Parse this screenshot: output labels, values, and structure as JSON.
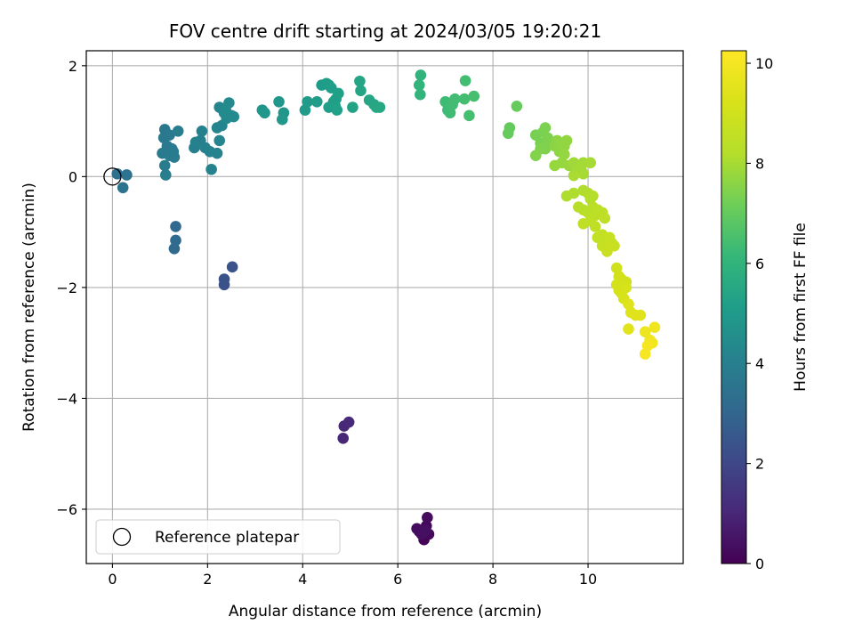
{
  "chart_data": {
    "type": "scatter",
    "title": "FOV centre drift starting at 2024/03/05 19:20:21",
    "xlabel": "Angular distance from reference (arcmin)",
    "ylabel": "Rotation from reference (arcmin)",
    "xlim": [
      -0.55,
      12.0
    ],
    "ylim": [
      -6.98,
      2.27
    ],
    "xticks": [
      0,
      2,
      4,
      6,
      8,
      10
    ],
    "yticks": [
      -6,
      -4,
      -2,
      0,
      2
    ],
    "grid": true,
    "legend": {
      "placement": "lower-left",
      "entries": [
        "Reference platepar"
      ]
    },
    "reference_point": {
      "x": 0,
      "y": 0
    },
    "colorbar": {
      "label": "Hours from first FF file",
      "range": [
        0,
        10.25
      ],
      "ticks": [
        0,
        2,
        4,
        6,
        8,
        10
      ],
      "colormap": "viridis"
    },
    "points": [
      {
        "x": 6.55,
        "y": -6.55,
        "t": 0.05
      },
      {
        "x": 6.45,
        "y": -6.4,
        "t": 0.1
      },
      {
        "x": 6.6,
        "y": -6.3,
        "t": 0.15
      },
      {
        "x": 6.65,
        "y": -6.45,
        "t": 0.2
      },
      {
        "x": 6.62,
        "y": -6.15,
        "t": 0.25
      },
      {
        "x": 6.4,
        "y": -6.35,
        "t": 0.3
      },
      {
        "x": 6.5,
        "y": -6.45,
        "t": 0.35
      },
      {
        "x": 6.58,
        "y": -6.38,
        "t": 0.4
      },
      {
        "x": 4.85,
        "y": -4.72,
        "t": 1.0
      },
      {
        "x": 4.87,
        "y": -4.5,
        "t": 1.05
      },
      {
        "x": 4.97,
        "y": -4.43,
        "t": 1.1
      },
      {
        "x": 2.35,
        "y": -1.95,
        "t": 2.3
      },
      {
        "x": 2.35,
        "y": -1.85,
        "t": 2.35
      },
      {
        "x": 2.52,
        "y": -1.63,
        "t": 2.4
      },
      {
        "x": 1.33,
        "y": -0.9,
        "t": 3.1
      },
      {
        "x": 1.33,
        "y": -1.15,
        "t": 3.15
      },
      {
        "x": 1.3,
        "y": -1.3,
        "t": 3.2
      },
      {
        "x": 0.1,
        "y": 0.05,
        "t": 3.4
      },
      {
        "x": 0.3,
        "y": 0.03,
        "t": 3.45
      },
      {
        "x": 0.22,
        "y": -0.2,
        "t": 3.5
      },
      {
        "x": 1.1,
        "y": 0.85,
        "t": 3.7
      },
      {
        "x": 1.08,
        "y": 0.7,
        "t": 3.72
      },
      {
        "x": 1.2,
        "y": 0.75,
        "t": 3.74
      },
      {
        "x": 1.15,
        "y": 0.55,
        "t": 3.76
      },
      {
        "x": 1.05,
        "y": 0.42,
        "t": 3.78
      },
      {
        "x": 1.25,
        "y": 0.5,
        "t": 3.8
      },
      {
        "x": 1.2,
        "y": 0.38,
        "t": 3.82
      },
      {
        "x": 1.3,
        "y": 0.35,
        "t": 3.84
      },
      {
        "x": 1.28,
        "y": 0.45,
        "t": 3.86
      },
      {
        "x": 1.1,
        "y": 0.2,
        "t": 3.88
      },
      {
        "x": 1.12,
        "y": 0.03,
        "t": 3.9
      },
      {
        "x": 1.38,
        "y": 0.82,
        "t": 3.92
      },
      {
        "x": 1.72,
        "y": 0.52,
        "t": 4.0
      },
      {
        "x": 1.75,
        "y": 0.62,
        "t": 4.02
      },
      {
        "x": 1.85,
        "y": 0.65,
        "t": 4.04
      },
      {
        "x": 1.88,
        "y": 0.82,
        "t": 4.06
      },
      {
        "x": 1.95,
        "y": 0.52,
        "t": 4.08
      },
      {
        "x": 2.05,
        "y": 0.45,
        "t": 4.1
      },
      {
        "x": 2.08,
        "y": 0.13,
        "t": 4.12
      },
      {
        "x": 2.2,
        "y": 0.42,
        "t": 4.14
      },
      {
        "x": 2.25,
        "y": 0.65,
        "t": 4.16
      },
      {
        "x": 2.2,
        "y": 0.88,
        "t": 4.18
      },
      {
        "x": 2.3,
        "y": 0.92,
        "t": 4.2
      },
      {
        "x": 2.25,
        "y": 1.25,
        "t": 4.3
      },
      {
        "x": 2.35,
        "y": 1.15,
        "t": 4.32
      },
      {
        "x": 2.4,
        "y": 1.05,
        "t": 4.34
      },
      {
        "x": 2.5,
        "y": 1.1,
        "t": 4.36
      },
      {
        "x": 2.55,
        "y": 1.08,
        "t": 4.38
      },
      {
        "x": 2.45,
        "y": 1.33,
        "t": 4.4
      },
      {
        "x": 2.38,
        "y": 1.2,
        "t": 4.42
      },
      {
        "x": 3.15,
        "y": 1.2,
        "t": 4.8
      },
      {
        "x": 3.2,
        "y": 1.15,
        "t": 4.82
      },
      {
        "x": 3.5,
        "y": 1.35,
        "t": 4.85
      },
      {
        "x": 3.6,
        "y": 1.15,
        "t": 4.88
      },
      {
        "x": 3.57,
        "y": 1.03,
        "t": 4.9
      },
      {
        "x": 4.05,
        "y": 1.2,
        "t": 5.0
      },
      {
        "x": 4.1,
        "y": 1.35,
        "t": 5.02
      },
      {
        "x": 4.3,
        "y": 1.35,
        "t": 5.04
      },
      {
        "x": 4.4,
        "y": 1.65,
        "t": 5.06
      },
      {
        "x": 4.5,
        "y": 1.68,
        "t": 5.08
      },
      {
        "x": 4.55,
        "y": 1.65,
        "t": 5.1
      },
      {
        "x": 4.6,
        "y": 1.6,
        "t": 5.12
      },
      {
        "x": 4.55,
        "y": 1.25,
        "t": 5.14
      },
      {
        "x": 4.65,
        "y": 1.35,
        "t": 5.16
      },
      {
        "x": 4.7,
        "y": 1.4,
        "t": 5.18
      },
      {
        "x": 4.75,
        "y": 1.5,
        "t": 5.2
      },
      {
        "x": 4.68,
        "y": 1.28,
        "t": 5.22
      },
      {
        "x": 4.72,
        "y": 1.2,
        "t": 5.24
      },
      {
        "x": 5.05,
        "y": 1.25,
        "t": 5.3
      },
      {
        "x": 5.2,
        "y": 1.72,
        "t": 5.4
      },
      {
        "x": 5.22,
        "y": 1.55,
        "t": 5.42
      },
      {
        "x": 5.4,
        "y": 1.38,
        "t": 5.44
      },
      {
        "x": 5.5,
        "y": 1.3,
        "t": 5.46
      },
      {
        "x": 5.55,
        "y": 1.25,
        "t": 5.48
      },
      {
        "x": 5.62,
        "y": 1.25,
        "t": 5.5
      },
      {
        "x": 6.48,
        "y": 1.83,
        "t": 6.0
      },
      {
        "x": 6.45,
        "y": 1.65,
        "t": 6.02
      },
      {
        "x": 6.47,
        "y": 1.48,
        "t": 6.04
      },
      {
        "x": 7.0,
        "y": 1.35,
        "t": 6.3
      },
      {
        "x": 7.05,
        "y": 1.2,
        "t": 6.32
      },
      {
        "x": 7.1,
        "y": 1.15,
        "t": 6.34
      },
      {
        "x": 7.15,
        "y": 1.3,
        "t": 6.36
      },
      {
        "x": 7.2,
        "y": 1.4,
        "t": 6.38
      },
      {
        "x": 7.42,
        "y": 1.73,
        "t": 6.4
      },
      {
        "x": 7.4,
        "y": 1.4,
        "t": 6.42
      },
      {
        "x": 7.5,
        "y": 1.1,
        "t": 6.44
      },
      {
        "x": 7.6,
        "y": 1.45,
        "t": 6.46
      },
      {
        "x": 8.35,
        "y": 0.88,
        "t": 7.0
      },
      {
        "x": 8.32,
        "y": 0.78,
        "t": 7.02
      },
      {
        "x": 8.5,
        "y": 1.27,
        "t": 7.04
      },
      {
        "x": 8.9,
        "y": 0.75,
        "t": 7.3
      },
      {
        "x": 9.0,
        "y": 0.6,
        "t": 7.32
      },
      {
        "x": 9.05,
        "y": 0.8,
        "t": 7.34
      },
      {
        "x": 9.1,
        "y": 0.88,
        "t": 7.36
      },
      {
        "x": 9.15,
        "y": 0.7,
        "t": 7.38
      },
      {
        "x": 9.2,
        "y": 0.6,
        "t": 7.4
      },
      {
        "x": 9.1,
        "y": 0.5,
        "t": 7.42
      },
      {
        "x": 9.0,
        "y": 0.5,
        "t": 7.44
      },
      {
        "x": 8.9,
        "y": 0.38,
        "t": 7.46
      },
      {
        "x": 9.3,
        "y": 0.55,
        "t": 7.6
      },
      {
        "x": 9.35,
        "y": 0.65,
        "t": 7.62
      },
      {
        "x": 9.4,
        "y": 0.45,
        "t": 7.64
      },
      {
        "x": 9.45,
        "y": 0.6,
        "t": 7.66
      },
      {
        "x": 9.5,
        "y": 0.55,
        "t": 7.68
      },
      {
        "x": 9.55,
        "y": 0.65,
        "t": 7.7
      },
      {
        "x": 9.5,
        "y": 0.4,
        "t": 7.72
      },
      {
        "x": 9.45,
        "y": 0.25,
        "t": 7.74
      },
      {
        "x": 9.3,
        "y": 0.2,
        "t": 7.76
      },
      {
        "x": 9.6,
        "y": 0.2,
        "t": 7.78
      },
      {
        "x": 9.7,
        "y": 0.25,
        "t": 7.9
      },
      {
        "x": 9.75,
        "y": 0.1,
        "t": 7.92
      },
      {
        "x": 9.85,
        "y": 0.15,
        "t": 7.94
      },
      {
        "x": 9.9,
        "y": 0.25,
        "t": 7.96
      },
      {
        "x": 10.05,
        "y": 0.25,
        "t": 7.98
      },
      {
        "x": 9.9,
        "y": 0.05,
        "t": 8.0
      },
      {
        "x": 9.7,
        "y": 0.02,
        "t": 8.02
      },
      {
        "x": 9.55,
        "y": -0.35,
        "t": 8.1
      },
      {
        "x": 9.7,
        "y": -0.3,
        "t": 8.12
      },
      {
        "x": 9.9,
        "y": -0.25,
        "t": 8.14
      },
      {
        "x": 10.0,
        "y": -0.3,
        "t": 8.16
      },
      {
        "x": 10.05,
        "y": -0.4,
        "t": 8.18
      },
      {
        "x": 10.1,
        "y": -0.35,
        "t": 8.2
      },
      {
        "x": 9.8,
        "y": -0.55,
        "t": 8.3
      },
      {
        "x": 9.9,
        "y": -0.6,
        "t": 8.32
      },
      {
        "x": 10.0,
        "y": -0.65,
        "t": 8.34
      },
      {
        "x": 10.1,
        "y": -0.55,
        "t": 8.36
      },
      {
        "x": 10.15,
        "y": -0.7,
        "t": 8.38
      },
      {
        "x": 10.2,
        "y": -0.6,
        "t": 8.4
      },
      {
        "x": 10.3,
        "y": -0.65,
        "t": 8.42
      },
      {
        "x": 10.35,
        "y": -0.75,
        "t": 8.44
      },
      {
        "x": 9.9,
        "y": -0.85,
        "t": 8.46
      },
      {
        "x": 10.05,
        "y": -0.8,
        "t": 8.48
      },
      {
        "x": 10.15,
        "y": -0.9,
        "t": 8.5
      },
      {
        "x": 10.2,
        "y": -1.1,
        "t": 8.6
      },
      {
        "x": 10.3,
        "y": -1.05,
        "t": 8.62
      },
      {
        "x": 10.35,
        "y": -1.15,
        "t": 8.64
      },
      {
        "x": 10.4,
        "y": -1.2,
        "t": 8.66
      },
      {
        "x": 10.3,
        "y": -1.25,
        "t": 8.68
      },
      {
        "x": 10.45,
        "y": -1.1,
        "t": 8.7
      },
      {
        "x": 10.5,
        "y": -1.2,
        "t": 8.72
      },
      {
        "x": 10.55,
        "y": -1.25,
        "t": 8.74
      },
      {
        "x": 10.4,
        "y": -1.35,
        "t": 8.76
      },
      {
        "x": 10.6,
        "y": -1.65,
        "t": 9.0
      },
      {
        "x": 10.65,
        "y": -1.8,
        "t": 9.02
      },
      {
        "x": 10.7,
        "y": -1.85,
        "t": 9.04
      },
      {
        "x": 10.75,
        "y": -1.9,
        "t": 9.06
      },
      {
        "x": 10.8,
        "y": -1.9,
        "t": 9.08
      },
      {
        "x": 10.6,
        "y": -1.95,
        "t": 9.1
      },
      {
        "x": 10.65,
        "y": -2.05,
        "t": 9.12
      },
      {
        "x": 10.7,
        "y": -2.1,
        "t": 9.14
      },
      {
        "x": 10.8,
        "y": -2.0,
        "t": 9.16
      },
      {
        "x": 10.75,
        "y": -2.2,
        "t": 9.18
      },
      {
        "x": 10.85,
        "y": -2.3,
        "t": 9.4
      },
      {
        "x": 10.9,
        "y": -2.45,
        "t": 9.42
      },
      {
        "x": 11.0,
        "y": -2.5,
        "t": 9.44
      },
      {
        "x": 11.1,
        "y": -2.5,
        "t": 9.46
      },
      {
        "x": 10.85,
        "y": -2.75,
        "t": 9.48
      },
      {
        "x": 11.2,
        "y": -2.8,
        "t": 9.8
      },
      {
        "x": 11.4,
        "y": -2.72,
        "t": 9.85
      },
      {
        "x": 11.3,
        "y": -2.95,
        "t": 9.9
      },
      {
        "x": 11.35,
        "y": -3.0,
        "t": 9.95
      },
      {
        "x": 11.25,
        "y": -3.05,
        "t": 10.0
      },
      {
        "x": 11.2,
        "y": -3.2,
        "t": 10.05
      }
    ]
  }
}
